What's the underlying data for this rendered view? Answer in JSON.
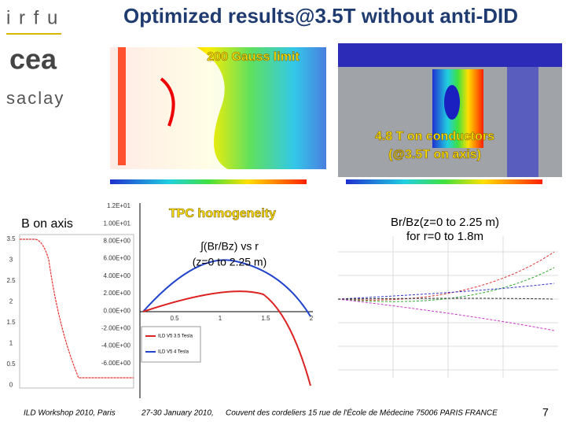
{
  "logo": {
    "irfu": "i r f u",
    "cea": "cea",
    "saclay": "saclay"
  },
  "title": "Optimized results@3.5T without anti-DID",
  "field_map": {
    "label": "200 Gauss limit"
  },
  "conductor_map": {
    "label_line1": "4.8 T on conductors",
    "label_line2": "(@3.5T on axis)"
  },
  "b_axis": {
    "label": "B on axis",
    "yticks": [
      "3.5",
      "3",
      "2.5",
      "2",
      "1.5",
      "1",
      "0.5",
      "0"
    ]
  },
  "tpc": {
    "label": "TPC homogeneity",
    "formula_line1": "∫(Br/Bz) vs r",
    "formula_line2": "(z=0 to 2.25 m)",
    "yticks": [
      "1.2E+01",
      "1.00E+01",
      "8.00E+00",
      "6.00E+00",
      "4.00E+00",
      "2.00E+00",
      "0.00E+00",
      "-2.00E+00",
      "-4.00E+00",
      "-6.00E+00"
    ],
    "xticks": [
      "0.5",
      "1",
      "1.5",
      "2"
    ],
    "legend": [
      "ILD V5 3.5 Tesla",
      "ILD V5 4 Tesla"
    ]
  },
  "brbz": {
    "label_line1": "Br/Bz(z=0 to 2.25 m)",
    "label_line2": "for r=0 to 1.8m"
  },
  "footer": {
    "event": "ILD Workshop 2010, Paris",
    "dates": "27-30 January 2010,",
    "venue": "Couvent des cordeliers  15 rue de l'École de Médecine 75006 PARIS FRANCE",
    "page": "7"
  }
}
